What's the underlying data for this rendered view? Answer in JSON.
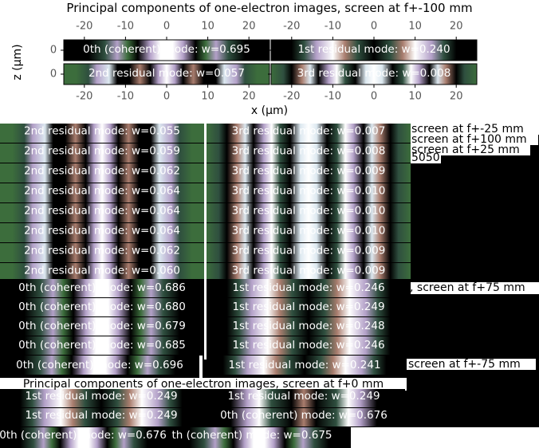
{
  "colors": {
    "background": "#ffffff",
    "stack_background": "#000000",
    "axis": "#000000",
    "tick_text": "#555555",
    "mode_label": "#ffffff",
    "colormap": [
      "#000000",
      "#2f4f3f",
      "#3c6d3c",
      "#a97d6e",
      "#b3a0c8",
      "#dce8f0",
      "#ffffff"
    ]
  },
  "chart_data": [
    {
      "type": "heatmap",
      "title": "Principal components of one-electron images, screen at f+-100 mm",
      "xlabel": "x (µm)",
      "ylabel": "z (µm)",
      "xlim": [
        -25,
        25
      ],
      "xticks": [
        -20,
        -10,
        0,
        10,
        20
      ],
      "yticks": [
        0
      ],
      "panels": [
        {
          "label": "0th (coherent) mode: w=0.695",
          "profile": "coherent"
        },
        {
          "label": "1st residual mode: w=0.240",
          "profile": "residual1"
        },
        {
          "label": "2nd residual mode: w=0.057",
          "profile": "residual2"
        },
        {
          "label": "3rd residual mode: w=0.008",
          "profile": "residual3"
        }
      ]
    },
    {
      "type": "heatmap",
      "columns": [
        {
          "profile": "residual2",
          "labels": [
            "2nd residual mode: w=0.055",
            "2nd residual mode: w=0.059",
            "2nd residual mode: w=0.062",
            "2nd residual mode: w=0.064",
            "2nd residual mode: w=0.064",
            "2nd residual mode: w=0.064",
            "2nd residual mode: w=0.062",
            "2nd residual mode: w=0.060"
          ]
        },
        {
          "profile": "residual3",
          "labels": [
            "3rd residual mode: w=0.007",
            "3rd residual mode: w=0.008",
            "3rd residual mode: w=0.009",
            "3rd residual mode: w=0.010",
            "3rd residual mode: w=0.010",
            "3rd residual mode: w=0.010",
            "3rd residual mode: w=0.009",
            "3rd residual mode: w=0.009"
          ]
        }
      ],
      "side_labels": [
        "screen at f+-25 mm",
        "screen at f+100 mm",
        "screen at f+25 mm",
        "5050"
      ]
    },
    {
      "type": "heatmap",
      "columns": [
        {
          "profile": "coherent",
          "labels": [
            "0th (coherent) mode: w=0.686",
            "0th (coherent) mode: w=0.680",
            "0th (coherent) mode: w=0.679",
            "0th (coherent) mode: w=0.685"
          ]
        },
        {
          "profile": "residual1",
          "labels": [
            "1st residual mode: w=0.246",
            "1st residual mode: w=0.249",
            "1st residual mode: w=0.248",
            "1st residual mode: w=0.246"
          ]
        }
      ],
      "side_labels": [
        ", screen at f+75 mm"
      ]
    },
    {
      "type": "heatmap",
      "columns": [
        {
          "profile": "coherent",
          "labels": [
            "0th (coherent) mode: w=0.696"
          ]
        },
        {
          "profile": "residual1",
          "labels": [
            "1st residual mode: w=0.241"
          ]
        }
      ],
      "side_labels": [
        "screen at f+-75 mm"
      ]
    },
    {
      "type": "heatmap",
      "title": "Principal components of one-electron images, screen at f+0 mm",
      "columns": [
        {
          "profile": "residual1",
          "labels": [
            "1st residual mode: w=0.249",
            "1st residual mode: w=0.249"
          ]
        },
        {
          "profile": "mixed",
          "labels": [
            "1st residual mode: w=0.249",
            "0th (coherent) mode: w=0.676"
          ]
        }
      ],
      "bottom_labels": [
        "0th (coherent) mode: w=0.676",
        "th (coherent) mode: w=0.675"
      ]
    }
  ]
}
